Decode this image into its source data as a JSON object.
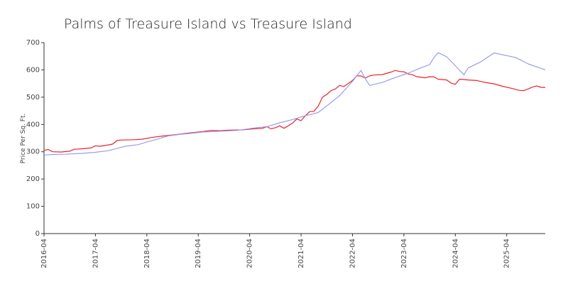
{
  "chart_data": {
    "type": "line",
    "title": "Palms of Treasure Island vs Treasure Island",
    "xlabel": "",
    "ylabel": "Price Per Sq. Ft.",
    "ylim": [
      0,
      700
    ],
    "y_ticks": [
      "0",
      "100",
      "200",
      "300",
      "400",
      "500",
      "600",
      "700"
    ],
    "x_range": [
      "2016-04",
      "2026-01"
    ],
    "x_ticks": [
      "2016-04",
      "2017-04",
      "2018-04",
      "2019-04",
      "2020-04",
      "2021-04",
      "2022-04",
      "2023-04",
      "2024-04",
      "2025-04"
    ],
    "grid": false,
    "legend": "none",
    "series": [
      {
        "color": "#e8232a",
        "points": [
          [
            "2016-04",
            305
          ],
          [
            "2016-05",
            308
          ],
          [
            "2016-06",
            300
          ],
          [
            "2016-08",
            299
          ],
          [
            "2016-10",
            302
          ],
          [
            "2016-11",
            309
          ],
          [
            "2017-01",
            311
          ],
          [
            "2017-03",
            314
          ],
          [
            "2017-04",
            322
          ],
          [
            "2017-05",
            320
          ],
          [
            "2017-07",
            325
          ],
          [
            "2017-08",
            328
          ],
          [
            "2017-09",
            341
          ],
          [
            "2017-10",
            343
          ],
          [
            "2018-01",
            344
          ],
          [
            "2018-03",
            346
          ],
          [
            "2018-05",
            352
          ],
          [
            "2018-08",
            358
          ],
          [
            "2018-11",
            363
          ],
          [
            "2019-02",
            369
          ],
          [
            "2019-05",
            374
          ],
          [
            "2019-07",
            378
          ],
          [
            "2019-09",
            377
          ],
          [
            "2019-11",
            379
          ],
          [
            "2020-02",
            380
          ],
          [
            "2020-05",
            384
          ],
          [
            "2020-07",
            386
          ],
          [
            "2020-08",
            392
          ],
          [
            "2020-09",
            384
          ],
          [
            "2020-10",
            388
          ],
          [
            "2020-11",
            395
          ],
          [
            "2020-12",
            386
          ],
          [
            "2021-01",
            395
          ],
          [
            "2021-02",
            405
          ],
          [
            "2021-03",
            420
          ],
          [
            "2021-04",
            414
          ],
          [
            "2021-05",
            432
          ],
          [
            "2021-06",
            447
          ],
          [
            "2021-07",
            448
          ],
          [
            "2021-08",
            467
          ],
          [
            "2021-09",
            500
          ],
          [
            "2021-10",
            510
          ],
          [
            "2021-11",
            524
          ],
          [
            "2021-12",
            530
          ],
          [
            "2022-01",
            543
          ],
          [
            "2022-02",
            539
          ],
          [
            "2022-03",
            550
          ],
          [
            "2022-04",
            561
          ],
          [
            "2022-05",
            578
          ],
          [
            "2022-06",
            578
          ],
          [
            "2022-07",
            570
          ],
          [
            "2022-08",
            578
          ],
          [
            "2022-09",
            581
          ],
          [
            "2022-11",
            583
          ],
          [
            "2023-01",
            592
          ],
          [
            "2023-02",
            598
          ],
          [
            "2023-03",
            594
          ],
          [
            "2023-04",
            593
          ],
          [
            "2023-05",
            585
          ],
          [
            "2023-06",
            582
          ],
          [
            "2023-07",
            575
          ],
          [
            "2023-09",
            571
          ],
          [
            "2023-10",
            575
          ],
          [
            "2023-11",
            574
          ],
          [
            "2023-12",
            566
          ],
          [
            "2024-02",
            563
          ],
          [
            "2024-03",
            552
          ],
          [
            "2024-04",
            547
          ],
          [
            "2024-05",
            566
          ],
          [
            "2024-07",
            563
          ],
          [
            "2024-09",
            561
          ],
          [
            "2024-11",
            554
          ],
          [
            "2025-01",
            549
          ],
          [
            "2025-03",
            540
          ],
          [
            "2025-05",
            533
          ],
          [
            "2025-07",
            525
          ],
          [
            "2025-08",
            524
          ],
          [
            "2025-09",
            530
          ],
          [
            "2025-10",
            537
          ],
          [
            "2025-11",
            541
          ],
          [
            "2025-12",
            536
          ],
          [
            "2026-01",
            535
          ]
        ]
      },
      {
        "color": "#9b9bf0",
        "points": [
          [
            "2016-04",
            288
          ],
          [
            "2016-06",
            290
          ],
          [
            "2016-09",
            291
          ],
          [
            "2017-01",
            294
          ],
          [
            "2017-04",
            298
          ],
          [
            "2017-07",
            304
          ],
          [
            "2017-09",
            312
          ],
          [
            "2017-11",
            320
          ],
          [
            "2018-02",
            326
          ],
          [
            "2018-04",
            336
          ],
          [
            "2018-06",
            344
          ],
          [
            "2018-09",
            358
          ],
          [
            "2018-12",
            364
          ],
          [
            "2019-02",
            367
          ],
          [
            "2019-05",
            372
          ],
          [
            "2019-09",
            375
          ],
          [
            "2020-01",
            378
          ],
          [
            "2020-05",
            387
          ],
          [
            "2020-08",
            392
          ],
          [
            "2020-11",
            406
          ],
          [
            "2021-02",
            418
          ],
          [
            "2021-05",
            432
          ],
          [
            "2021-08",
            444
          ],
          [
            "2021-10",
            468
          ],
          [
            "2022-01",
            506
          ],
          [
            "2022-04",
            558
          ],
          [
            "2022-06",
            598
          ],
          [
            "2022-07",
            567
          ],
          [
            "2022-08",
            543
          ],
          [
            "2022-11",
            554
          ],
          [
            "2023-02",
            572
          ],
          [
            "2023-05",
            588
          ],
          [
            "2023-08",
            608
          ],
          [
            "2023-10",
            619
          ],
          [
            "2023-11",
            645
          ],
          [
            "2023-12",
            663
          ],
          [
            "2024-02",
            648
          ],
          [
            "2024-06",
            582
          ],
          [
            "2024-07",
            607
          ],
          [
            "2024-10",
            630
          ],
          [
            "2025-01",
            662
          ],
          [
            "2025-06",
            646
          ],
          [
            "2025-09",
            622
          ],
          [
            "2026-01",
            600
          ]
        ]
      }
    ]
  }
}
